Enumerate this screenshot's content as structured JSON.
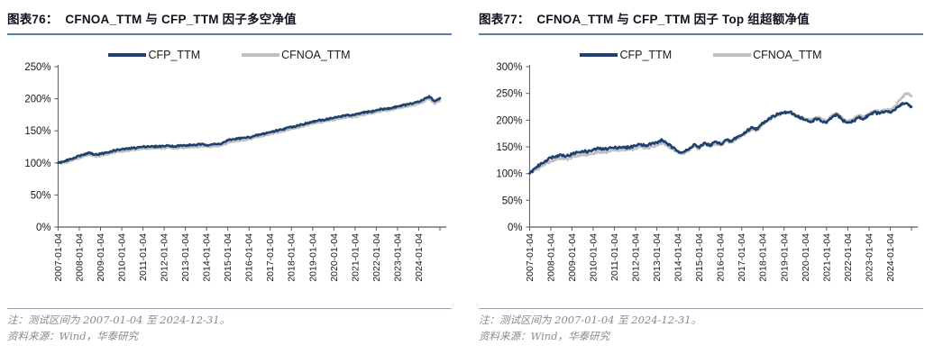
{
  "panels": [
    {
      "title": "图表76：  CFNOA_TTM 与 CFP_TTM 因子多空净值",
      "legend": [
        {
          "label": "CFP_TTM",
          "color": "#1e4170"
        },
        {
          "label": "CFNOA_TTM",
          "color": "#c0c0c0"
        }
      ],
      "note": "注：测试区间为 2007-01-04 至 2024-12-31。",
      "source": "资料来源：Wind，华泰研究"
    },
    {
      "title": "图表77：  CFNOA_TTM 与 CFP_TTM 因子 Top 组超额净值",
      "legend": [
        {
          "label": "CFP_TTM",
          "color": "#1e4170"
        },
        {
          "label": "CFNOA_TTM",
          "color": "#c0c0c0"
        }
      ],
      "note": "注：测试区间为 2007-01-04 至 2024-12-31。",
      "source": "资料来源：Wind，华泰研究"
    }
  ],
  "chart_data": [
    {
      "type": "line",
      "title": "CFNOA_TTM 与 CFP_TTM 因子多空净值",
      "xlabel": "",
      "ylabel": "",
      "ylim": [
        0,
        250
      ],
      "ytick_step": 50,
      "ytick_suffix": "%",
      "x_range": [
        2007,
        2025.3
      ],
      "x_start": 2007,
      "x_step": 0.25,
      "x_tick_years": [
        2007,
        2008,
        2009,
        2010,
        2011,
        2012,
        2013,
        2014,
        2015,
        2016,
        2017,
        2018,
        2019,
        2020,
        2021,
        2022,
        2023,
        2024,
        2025
      ],
      "x_tick_labels": [
        "2007-01-04",
        "2008-01-04",
        "2009-01-04",
        "2010-01-04",
        "2011-01-04",
        "2012-01-04",
        "2013-01-04",
        "2014-01-04",
        "2015-01-04",
        "2016-01-04",
        "2017-01-04",
        "2018-01-04",
        "2019-01-04",
        "2020-01-04",
        "2021-01-04",
        "2022-01-04",
        "2023-01-04",
        "2024-01-04"
      ],
      "grid": false,
      "legend_position": "top",
      "noise_amplitude": 1.3,
      "series": [
        {
          "name": "CFNOA_TTM",
          "color": "#c0c0c0",
          "values": [
            100,
            100,
            102,
            105,
            108,
            111,
            113,
            110,
            111,
            113,
            115,
            117,
            118,
            119,
            120,
            121,
            122,
            123,
            122,
            123,
            123,
            124,
            123,
            124,
            124,
            125,
            125,
            126,
            125,
            126,
            126,
            128,
            131,
            133,
            134,
            136,
            137,
            139,
            141,
            143,
            145,
            147,
            149,
            151,
            153,
            155,
            157,
            159,
            161,
            163,
            164,
            166,
            167,
            169,
            171,
            171,
            172,
            174,
            176,
            177,
            179,
            181,
            181,
            183,
            185,
            187,
            188,
            190,
            192,
            196,
            200,
            192,
            197
          ]
        },
        {
          "name": "CFP_TTM",
          "color": "#1e4170",
          "values": [
            100,
            102,
            105,
            108,
            111,
            114,
            116,
            113,
            114,
            116,
            118,
            120,
            121,
            122,
            123,
            124,
            125,
            126,
            125,
            126,
            126,
            127,
            126,
            127,
            127,
            128,
            128,
            129,
            128,
            129,
            129,
            131,
            135,
            137,
            138,
            139,
            140,
            142,
            144,
            146,
            148,
            150,
            152,
            154,
            156,
            158,
            160,
            162,
            164,
            166,
            167,
            169,
            170,
            172,
            174,
            174,
            175,
            177,
            179,
            180,
            182,
            184,
            184,
            186,
            188,
            190,
            191,
            193,
            195,
            199,
            204,
            196,
            201
          ]
        }
      ]
    },
    {
      "type": "line",
      "title": "CFNOA_TTM 与 CFP_TTM 因子 Top 组超额净值",
      "xlabel": "",
      "ylabel": "",
      "ylim": [
        0,
        300
      ],
      "ytick_step": 50,
      "ytick_suffix": "%",
      "x_range": [
        2007,
        2025.3
      ],
      "x_start": 2007,
      "x_step": 0.25,
      "x_tick_years": [
        2007,
        2008,
        2009,
        2010,
        2011,
        2012,
        2013,
        2014,
        2015,
        2016,
        2017,
        2018,
        2019,
        2020,
        2021,
        2022,
        2023,
        2024,
        2025
      ],
      "x_tick_labels": [
        "2007-01-04",
        "2008-01-04",
        "2009-01-04",
        "2010-01-04",
        "2011-01-04",
        "2012-01-04",
        "2013-01-04",
        "2014-01-04",
        "2015-01-04",
        "2016-01-04",
        "2017-01-04",
        "2018-01-04",
        "2019-01-04",
        "2020-01-04",
        "2021-01-04",
        "2022-01-04",
        "2023-01-04",
        "2024-01-04"
      ],
      "grid": false,
      "legend_position": "top",
      "noise_amplitude": 2.4,
      "series": [
        {
          "name": "CFNOA_TTM",
          "color": "#c0c0c0",
          "values": [
            100,
            106,
            112,
            118,
            123,
            127,
            129,
            127,
            130,
            133,
            135,
            135,
            138,
            141,
            139,
            142,
            143,
            145,
            143,
            145,
            147,
            150,
            148,
            151,
            153,
            158,
            152,
            146,
            139,
            138,
            143,
            152,
            146,
            155,
            150,
            157,
            153,
            160,
            158,
            165,
            170,
            177,
            184,
            181,
            192,
            200,
            206,
            210,
            213,
            214,
            209,
            206,
            202,
            199,
            206,
            202,
            198,
            208,
            212,
            204,
            198,
            202,
            208,
            206,
            212,
            218,
            215,
            220,
            218,
            226,
            240,
            250,
            245
          ]
        },
        {
          "name": "CFP_TTM",
          "color": "#1e4170",
          "values": [
            100,
            110,
            117,
            124,
            130,
            133,
            135,
            133,
            136,
            140,
            142,
            141,
            144,
            147,
            145,
            148,
            148,
            150,
            148,
            150,
            152,
            155,
            153,
            156,
            158,
            163,
            156,
            148,
            142,
            140,
            145,
            155,
            148,
            158,
            152,
            160,
            155,
            163,
            160,
            168,
            172,
            180,
            187,
            183,
            195,
            202,
            208,
            212,
            214,
            215,
            210,
            205,
            200,
            196,
            203,
            198,
            195,
            205,
            210,
            200,
            195,
            198,
            205,
            202,
            210,
            215,
            212,
            216,
            214,
            220,
            230,
            232,
            225
          ]
        }
      ]
    }
  ],
  "style": {
    "axis_color": "#595959",
    "tick_label_color": "#1a1a1a",
    "title_underline_color": "#5580ae"
  }
}
